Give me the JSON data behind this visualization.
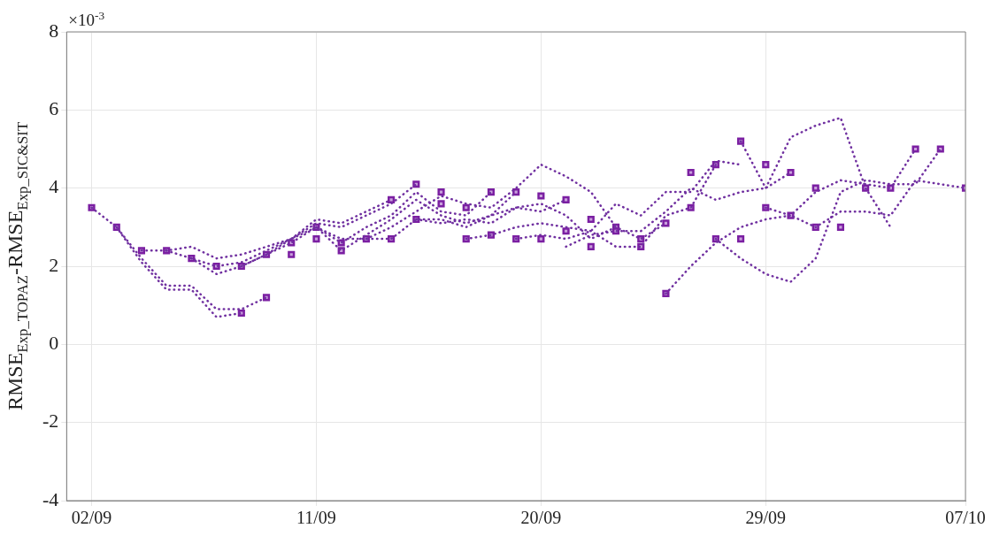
{
  "chart_data": {
    "type": "line",
    "ylabel": "RMSE$_{Exp_TOPAZ}$-RMSE$_{Exp_SIC&SIT}$",
    "annotations": [
      "×10$^{-3}$"
    ],
    "xlim": [
      "--09-01",
      "--10-07"
    ],
    "xticks": [
      {
        "value": "--09-02",
        "label": "02/09"
      },
      {
        "value": "--09-11",
        "label": "11/09"
      },
      {
        "value": "--09-20",
        "label": "20/09"
      },
      {
        "value": "--09-29",
        "label": "29/09"
      },
      {
        "value": "--10-07",
        "label": "07/10"
      }
    ],
    "ylim": [
      -4,
      8
    ],
    "yticks": [
      -4,
      -2,
      0,
      2,
      4,
      6,
      8
    ],
    "grid": true,
    "legend": false,
    "line_style": "dotted",
    "marker": "none",
    "series": [
      {
        "type": "line",
        "color": "#7030a0",
        "x": [
          "--09-02",
          "--09-03",
          "--09-04",
          "--09-05",
          "--09-06",
          "--09-07",
          "--09-08",
          "--09-09"
        ],
        "values": [
          3.5,
          3.0,
          2.2,
          1.5,
          1.5,
          0.9,
          0.9,
          1.2
        ]
      },
      {
        "type": "line",
        "color": "#7030a0",
        "x": [
          "--09-03",
          "--09-04",
          "--09-05",
          "--09-06",
          "--09-07",
          "--09-08"
        ],
        "values": [
          3.0,
          2.1,
          1.4,
          1.4,
          0.7,
          0.8
        ]
      },
      {
        "type": "line",
        "color": "#7030a0",
        "x": [
          "--09-04",
          "--09-05",
          "--09-06",
          "--09-07",
          "--09-08",
          "--09-09",
          "--09-10",
          "--09-11",
          "--09-12",
          "--09-13",
          "--09-14"
        ],
        "values": [
          2.4,
          2.4,
          2.5,
          2.2,
          2.3,
          2.5,
          2.7,
          3.2,
          3.1,
          3.4,
          3.7
        ]
      },
      {
        "type": "line",
        "color": "#7030a0",
        "x": [
          "--09-05",
          "--09-06",
          "--09-07",
          "--09-08",
          "--09-09",
          "--09-10",
          "--09-11",
          "--09-12",
          "--09-13",
          "--09-14",
          "--09-15"
        ],
        "values": [
          2.4,
          2.2,
          2.0,
          2.1,
          2.4,
          2.7,
          3.1,
          3.0,
          3.3,
          3.6,
          4.1
        ]
      },
      {
        "type": "line",
        "color": "#7030a0",
        "x": [
          "--09-06",
          "--09-07",
          "--09-08",
          "--09-09",
          "--09-10",
          "--09-11",
          "--09-12",
          "--09-13",
          "--09-14",
          "--09-15",
          "--09-16",
          "--09-17",
          "--09-18"
        ],
        "values": [
          2.2,
          1.8,
          2.0,
          2.3,
          2.6,
          3.0,
          2.6,
          3.0,
          3.3,
          3.9,
          3.4,
          3.3,
          3.9
        ]
      },
      {
        "type": "line",
        "color": "#7030a0",
        "x": [
          "--09-08",
          "--09-09",
          "--09-10",
          "--09-11",
          "--09-12",
          "--09-13",
          "--09-14",
          "--09-15",
          "--09-16",
          "--09-17",
          "--09-18",
          "--09-19"
        ],
        "values": [
          2.0,
          2.3,
          2.7,
          3.0,
          2.4,
          2.8,
          3.2,
          3.7,
          3.3,
          3.1,
          3.3,
          3.9
        ]
      },
      {
        "type": "line",
        "color": "#7030a0",
        "x": [
          "--09-11",
          "--09-12",
          "--09-13",
          "--09-14",
          "--09-15",
          "--09-16",
          "--09-17",
          "--09-18",
          "--09-19",
          "--09-20",
          "--09-21"
        ],
        "values": [
          3.0,
          2.7,
          2.7,
          2.7,
          3.2,
          3.2,
          3.0,
          3.3,
          3.5,
          3.4,
          3.7
        ]
      },
      {
        "type": "line",
        "color": "#7030a0",
        "x": [
          "--09-13",
          "--09-14",
          "--09-15",
          "--09-16",
          "--09-17",
          "--09-18",
          "--09-19",
          "--09-20",
          "--09-21",
          "--09-22",
          "--09-23"
        ],
        "values": [
          2.7,
          3.0,
          3.4,
          3.8,
          3.6,
          3.5,
          4.0,
          4.6,
          4.3,
          3.9,
          3.0
        ]
      },
      {
        "type": "line",
        "color": "#7030a0",
        "x": [
          "--09-15",
          "--09-16",
          "--09-17",
          "--09-18",
          "--09-19",
          "--09-20",
          "--09-21",
          "--09-22",
          "--09-23",
          "--09-24",
          "--09-25"
        ],
        "values": [
          3.2,
          3.1,
          3.2,
          3.1,
          3.5,
          3.6,
          3.3,
          2.7,
          3.0,
          2.7,
          3.1
        ]
      },
      {
        "type": "line",
        "color": "#7030a0",
        "x": [
          "--09-17",
          "--09-18",
          "--09-19",
          "--09-20",
          "--09-21",
          "--09-22",
          "--09-23",
          "--09-24",
          "--09-25",
          "--09-26",
          "--09-27"
        ],
        "values": [
          2.7,
          2.8,
          3.0,
          3.1,
          3.0,
          2.9,
          2.5,
          2.5,
          3.3,
          3.5,
          4.6
        ]
      },
      {
        "type": "line",
        "color": "#7030a0",
        "x": [
          "--09-19",
          "--09-20",
          "--09-21",
          "--09-22",
          "--09-23",
          "--09-24",
          "--09-25",
          "--09-26",
          "--09-27",
          "--09-28"
        ],
        "values": [
          2.7,
          2.8,
          2.7,
          2.9,
          3.6,
          3.3,
          3.9,
          3.9,
          4.7,
          4.6
        ]
      },
      {
        "type": "line",
        "color": "#7030a0",
        "x": [
          "--09-21",
          "--09-22",
          "--09-23",
          "--09-24",
          "--09-25",
          "--09-26",
          "--09-27",
          "--09-28",
          "--09-29",
          "--09-30"
        ],
        "values": [
          2.5,
          2.8,
          2.9,
          2.9,
          3.4,
          4.0,
          3.7,
          3.9,
          4.0,
          4.4
        ]
      },
      {
        "type": "line",
        "color": "#7030a0",
        "x": [
          "--09-25",
          "--09-26",
          "--09-27",
          "--09-28",
          "--09-29",
          "--09-30",
          "--10-01",
          "--10-02",
          "--10-03",
          "--10-04",
          "--10-05"
        ],
        "values": [
          1.3,
          2.0,
          2.6,
          3.0,
          3.2,
          3.3,
          3.9,
          4.2,
          4.1,
          4.0,
          5.0
        ]
      },
      {
        "type": "line",
        "color": "#7030a0",
        "x": [
          "--09-27",
          "--09-28",
          "--09-29",
          "--09-30",
          "--10-01",
          "--10-02",
          "--10-03",
          "--10-04",
          "--10-05",
          "--10-06"
        ],
        "values": [
          2.7,
          2.2,
          1.8,
          1.6,
          2.2,
          3.9,
          4.2,
          4.1,
          4.1,
          5.0
        ]
      },
      {
        "type": "line",
        "color": "#7030a0",
        "x": [
          "--09-28",
          "--09-29",
          "--09-30",
          "--10-01",
          "--10-02",
          "--10-03",
          "--10-04"
        ],
        "values": [
          5.2,
          4.0,
          5.3,
          5.6,
          5.8,
          4.0,
          3.0
        ]
      },
      {
        "type": "line",
        "color": "#7030a0",
        "x": [
          "--09-29",
          "--09-30",
          "--10-01",
          "--10-02",
          "--10-03",
          "--10-04",
          "--10-05",
          "--10-06",
          "--10-07"
        ],
        "values": [
          3.5,
          3.3,
          3.0,
          3.4,
          3.4,
          3.3,
          4.2,
          4.1,
          4.0
        ]
      },
      {
        "type": "scatter",
        "color": "#7b1fa2",
        "marker": "square",
        "x": [
          "--09-02",
          "--09-03",
          "--09-04",
          "--09-05",
          "--09-06",
          "--09-07",
          "--09-08",
          "--09-08",
          "--09-09",
          "--09-09",
          "--09-10",
          "--09-10",
          "--09-11",
          "--09-11",
          "--09-12",
          "--09-12",
          "--09-13",
          "--09-14",
          "--09-14",
          "--09-15",
          "--09-15",
          "--09-16",
          "--09-16",
          "--09-17",
          "--09-17",
          "--09-18",
          "--09-18",
          "--09-19",
          "--09-19",
          "--09-20",
          "--09-20",
          "--09-21",
          "--09-21",
          "--09-22",
          "--09-22",
          "--09-23",
          "--09-23",
          "--09-24",
          "--09-24",
          "--09-25",
          "--09-25",
          "--09-26",
          "--09-26",
          "--09-27",
          "--09-27",
          "--09-28",
          "--09-28",
          "--09-29",
          "--09-29",
          "--09-30",
          "--09-30",
          "--10-01",
          "--10-01",
          "--10-02",
          "--10-03",
          "--10-04",
          "--10-05",
          "--10-06",
          "--10-07"
        ],
        "values": [
          3.5,
          3.0,
          2.4,
          2.4,
          2.2,
          2.0,
          2.0,
          0.8,
          1.2,
          2.3,
          2.6,
          2.3,
          3.0,
          2.7,
          2.6,
          2.4,
          2.7,
          3.7,
          2.7,
          4.1,
          3.2,
          3.9,
          3.6,
          3.5,
          2.7,
          3.9,
          2.8,
          3.9,
          2.7,
          3.8,
          2.7,
          3.7,
          2.9,
          3.2,
          2.5,
          3.0,
          2.9,
          2.7,
          2.5,
          1.3,
          3.1,
          4.4,
          3.5,
          4.6,
          2.7,
          5.2,
          2.7,
          4.6,
          3.5,
          4.4,
          3.3,
          4.0,
          3.0,
          3.0,
          4.0,
          4.0,
          5.0,
          5.0,
          4.0
        ]
      }
    ]
  }
}
